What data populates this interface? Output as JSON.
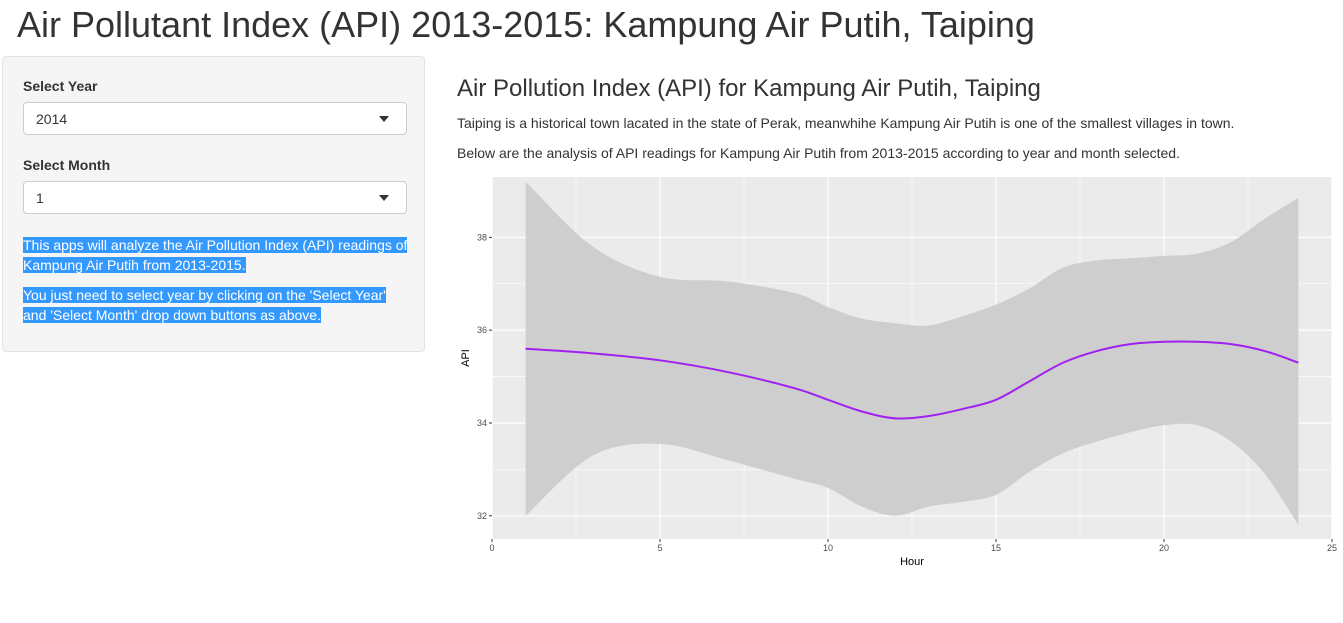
{
  "page": {
    "title": "Air Pollutant Index (API) 2013-2015: Kampung Air Putih, Taiping"
  },
  "sidebar": {
    "year_label": "Select Year",
    "year_value": "2014",
    "month_label": "Select Month",
    "month_value": "1",
    "info_line1": "This apps will analyze the Air Pollution Index (API) readings of Kampung Air Putih from 2013-2015.",
    "info_line2": "You just need to select year by clicking on the 'Select Year' and 'Select Month' drop down buttons as above."
  },
  "main": {
    "heading": "Air Pollution Index (API) for Kampung Air Putih, Taiping",
    "para1": "Taiping is a historical town lacated in the state of Perak, meanwhihe Kampung Air Putih is one of the smallest villages in town.",
    "para2": "Below are the analysis of API readings for Kampung Air Putih from 2013-2015 according to year and month selected."
  },
  "colors": {
    "line": "#a020f0",
    "ribbon": "#cccccc",
    "panel": "#ebebeb",
    "grid": "#ffffff",
    "selection": "#3399ff"
  },
  "chart_data": {
    "type": "line",
    "title": "",
    "xlabel": "Hour",
    "ylabel": "API",
    "xlim": [
      0,
      25
    ],
    "ylim": [
      31.5,
      39.3
    ],
    "xticks": [
      0,
      5,
      10,
      15,
      20,
      25
    ],
    "yticks": [
      32,
      34,
      36,
      38
    ],
    "grid": true,
    "legend": "none",
    "series": [
      {
        "x": [
          1,
          3,
          5,
          7,
          9,
          10,
          11,
          12,
          13,
          14,
          15,
          16,
          17,
          18,
          19,
          20,
          21,
          22,
          23,
          24
        ],
        "y": [
          35.6,
          35.5,
          35.35,
          35.1,
          34.75,
          34.5,
          34.25,
          34.1,
          34.15,
          34.3,
          34.5,
          34.9,
          35.3,
          35.55,
          35.7,
          35.75,
          35.75,
          35.7,
          35.55,
          35.3
        ],
        "ymin": [
          32.0,
          33.3,
          33.55,
          33.2,
          32.8,
          32.6,
          32.2,
          32.0,
          32.2,
          32.3,
          32.45,
          32.95,
          33.35,
          33.6,
          33.8,
          33.95,
          33.95,
          33.6,
          32.9,
          31.8
        ],
        "ymax": [
          39.2,
          37.8,
          37.15,
          37.05,
          36.8,
          36.5,
          36.25,
          36.15,
          36.1,
          36.3,
          36.55,
          36.9,
          37.35,
          37.5,
          37.55,
          37.6,
          37.65,
          37.9,
          38.4,
          38.85
        ]
      }
    ]
  }
}
